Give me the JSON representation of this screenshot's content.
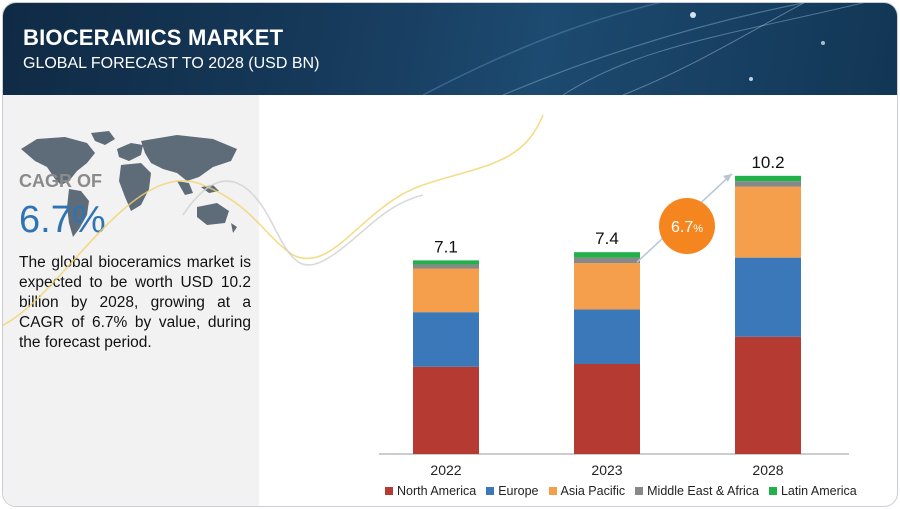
{
  "header": {
    "title": "BIOCERAMICS MARKET",
    "subtitle": "GLOBAL FORECAST TO 2028 (USD BN)"
  },
  "left": {
    "cagr_label": "CAGR OF",
    "cagr_value": "6.7%",
    "description": "The global bioceramics market is expected to be worth USD 10.2 billion by 2028, growing at a CAGR of 6.7% by value, during the forecast period."
  },
  "colors": {
    "north_america": "#b53a32",
    "europe": "#3a78b9",
    "asia_pacific": "#f59f4c",
    "middle_east_africa": "#888888",
    "latin_america": "#22b04b",
    "cagr_badge": "#f5861f"
  },
  "chart_data": {
    "type": "bar",
    "stacked": true,
    "categories": [
      "2022",
      "2023",
      "2028"
    ],
    "totals": [
      "7.1",
      "7.4",
      "10.2"
    ],
    "series": [
      {
        "name": "North America",
        "values": [
          3.2,
          3.3,
          4.3
        ]
      },
      {
        "name": "Europe",
        "values": [
          2.0,
          2.0,
          2.9
        ]
      },
      {
        "name": "Asia Pacific",
        "values": [
          1.6,
          1.7,
          2.6
        ]
      },
      {
        "name": "Middle East & Africa",
        "values": [
          0.15,
          0.2,
          0.2
        ]
      },
      {
        "name": "Latin America",
        "values": [
          0.15,
          0.2,
          0.2
        ]
      }
    ],
    "ylim": [
      0,
      11
    ],
    "grid": false,
    "legend": "bottom",
    "annotation": {
      "label": "6.7",
      "suffix": "%"
    }
  }
}
